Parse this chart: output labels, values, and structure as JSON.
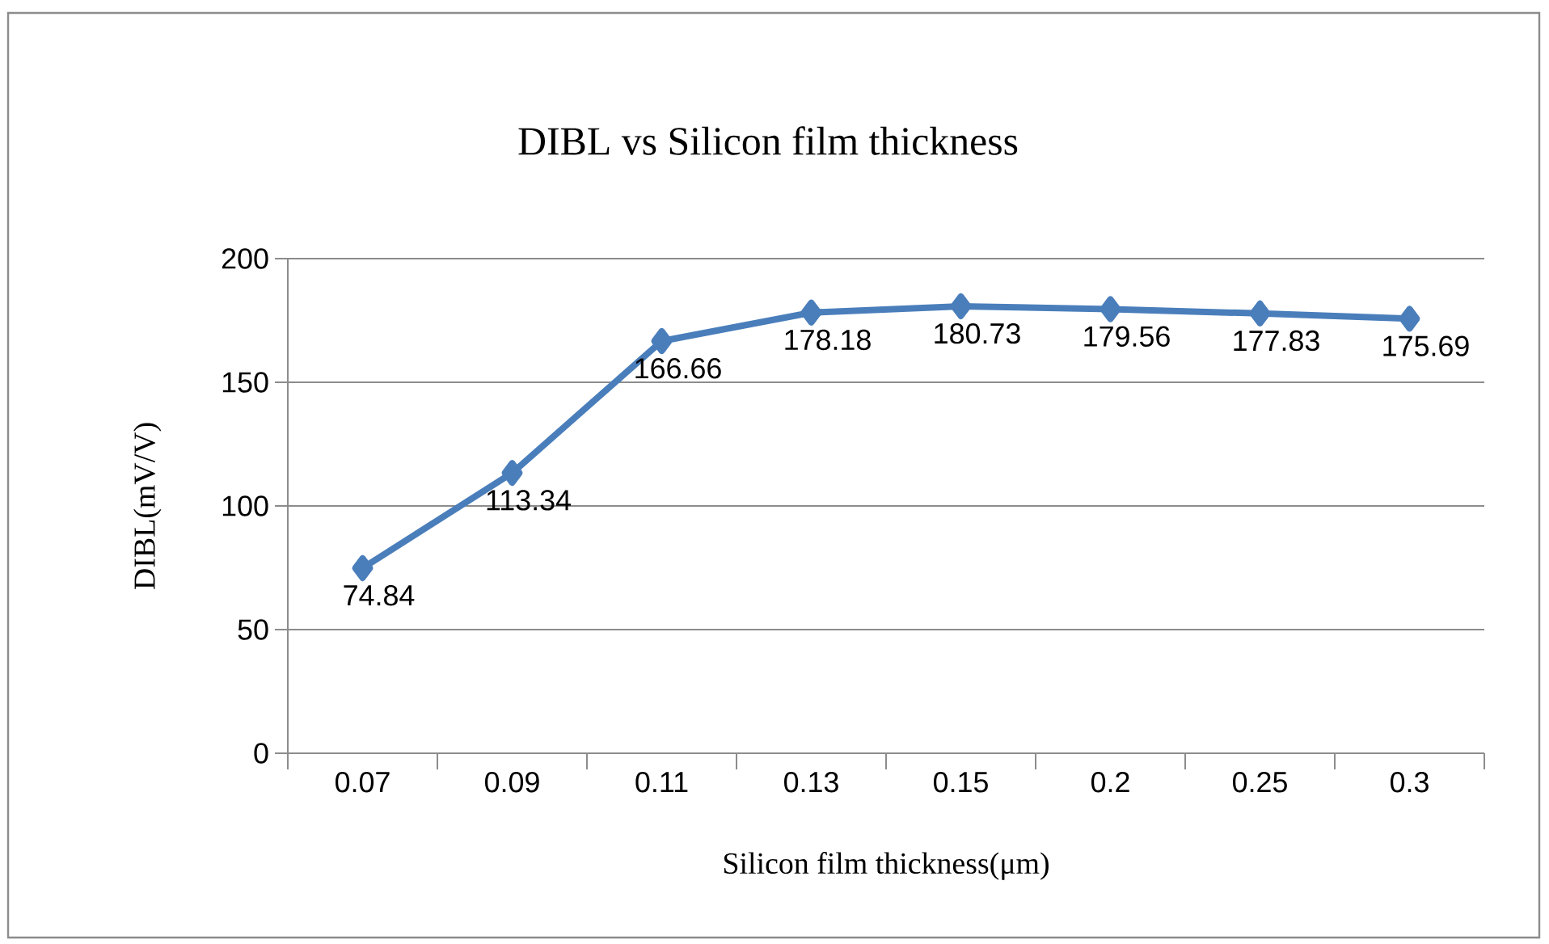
{
  "chart_data": {
    "type": "line",
    "title": "DIBL vs Silicon film thickness",
    "xlabel": "Silicon film thickness(μm)",
    "ylabel": "DIBL(mV/V)",
    "categories": [
      "0.07",
      "0.09",
      "0.11",
      "0.13",
      "0.15",
      "0.2",
      "0.25",
      "0.3"
    ],
    "series": [
      {
        "color": "#4a7ebb",
        "values": [
          74.84,
          113.34,
          166.66,
          178.18,
          180.73,
          179.56,
          177.83,
          175.69
        ]
      }
    ],
    "ylim": [
      0,
      200
    ],
    "yticks": [
      0,
      50,
      100,
      150,
      200
    ],
    "grid": "y",
    "marker": "diamond",
    "line_style": "solid",
    "data_labels": true
  }
}
